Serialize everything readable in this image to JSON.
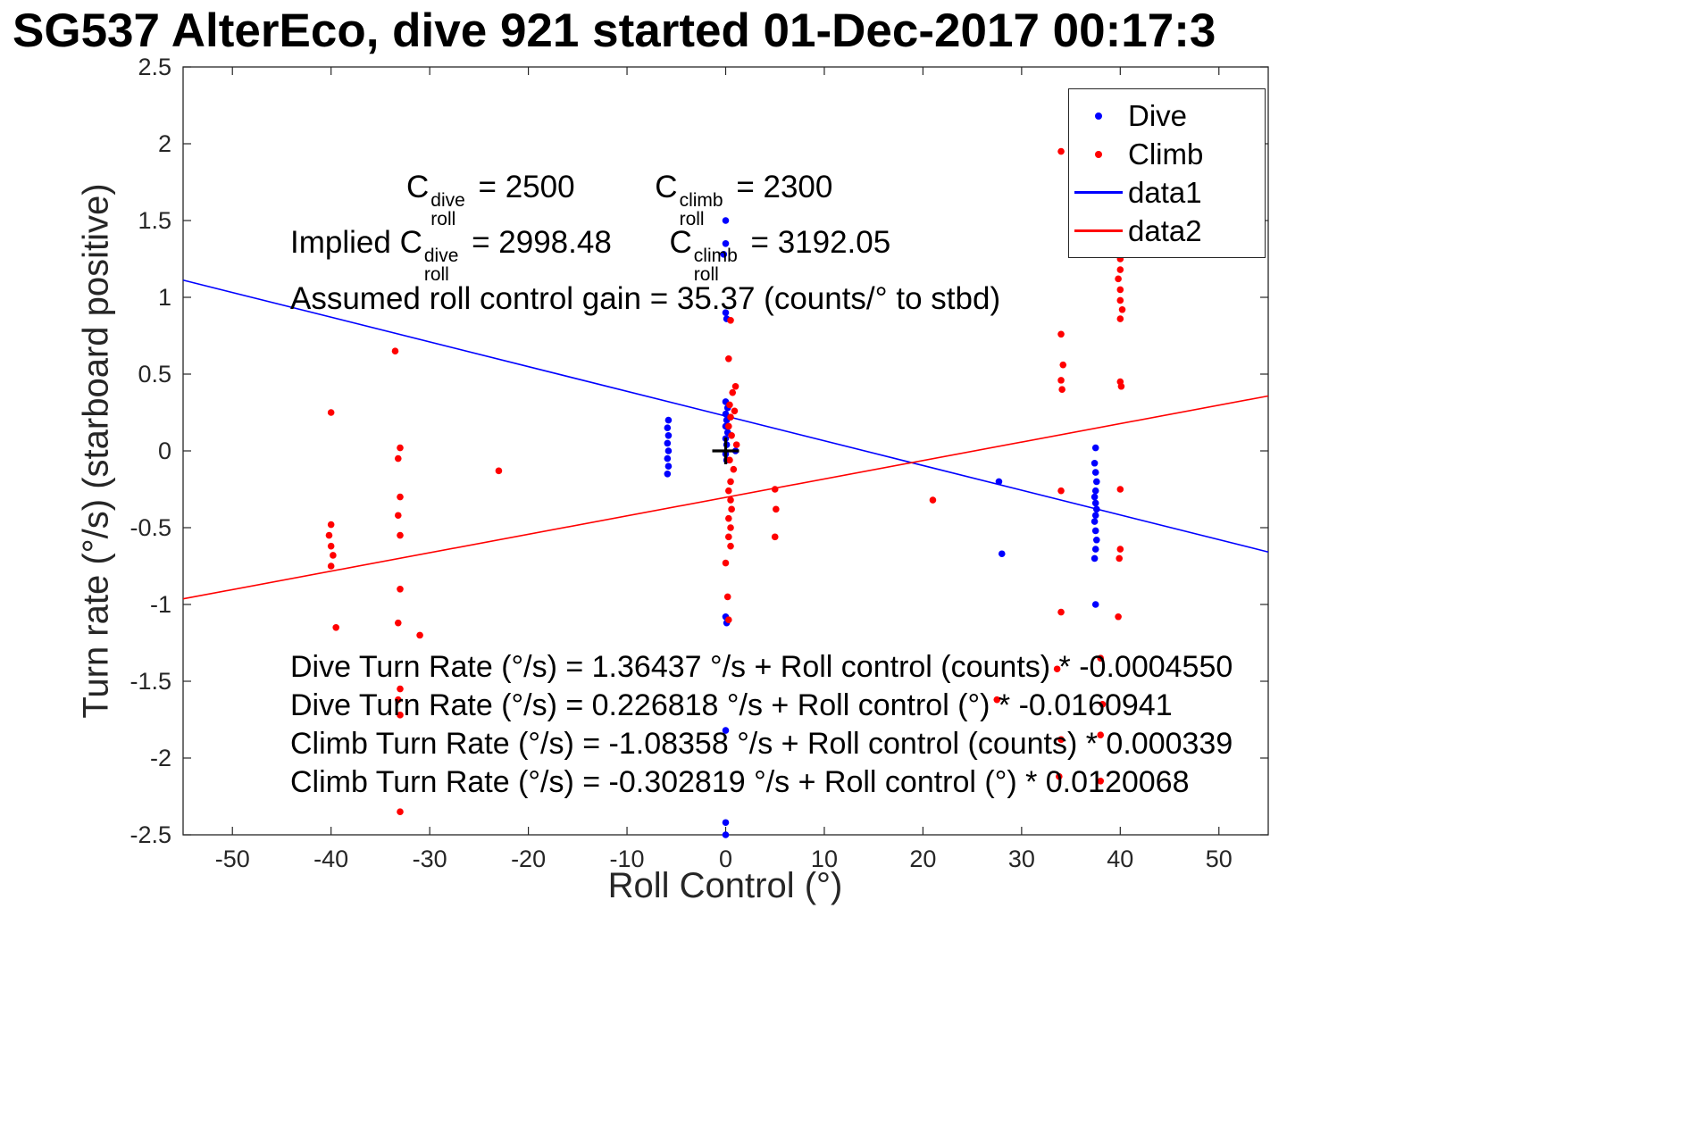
{
  "annotations": {
    "cdive": {
      "c": "C",
      "sup": "dive",
      "sub": "roll",
      "eq": " = 2500"
    },
    "cclimb": {
      "c": "C",
      "sup": "climb",
      "sub": "roll",
      "eq": " = 2300"
    },
    "implied_prefix": "Implied ",
    "implied_cdive": {
      "c": "C",
      "sup": "dive",
      "sub": "roll",
      "eq": " = 2998.48"
    },
    "implied_cclimb": {
      "c": "C",
      "sup": "climb",
      "sub": "roll",
      "eq": " = 3192.05"
    },
    "gain_line": "Assumed roll control gain = 35.37 (counts/° to stbd)",
    "equations": {
      "eq1": "Dive Turn Rate (°/s) = 1.36437 °/s + Roll control (counts) * -0.0004550",
      "eq2": "Dive Turn Rate (°/s) = 0.226818 °/s + Roll control (°) * -0.0160941",
      "eq3": "Climb Turn Rate (°/s) = -1.08358 °/s + Roll control (counts) * 0.000339",
      "eq4": "Climb Turn Rate (°/s) = -0.302819 °/s + Roll control (°) * 0.0120068"
    }
  },
  "chart_data": {
    "type": "scatter",
    "title": "SG537 AlterEco, dive 921 started 01-Dec-2017 00:17:3",
    "xlabel": "Roll Control (°)",
    "ylabel": "Turn rate (°/s) (starboard positive)",
    "xlim": [
      -55,
      55
    ],
    "ylim": [
      -2.5,
      2.5
    ],
    "xticks": [
      -50,
      -40,
      -30,
      -20,
      -10,
      0,
      10,
      20,
      30,
      40,
      50
    ],
    "xtick_labels": [
      "-50",
      "-40",
      "-30",
      "-20",
      "-10",
      "0",
      "10",
      "20",
      "30",
      "40",
      "50"
    ],
    "yticks": [
      -2.5,
      -2,
      -1.5,
      -1,
      -0.5,
      0,
      0.5,
      1,
      1.5,
      2,
      2.5
    ],
    "ytick_labels": [
      "-2.5",
      "-2",
      "-1.5",
      "-1",
      "-0.5",
      "0",
      "0.5",
      "1",
      "1.5",
      "2",
      "2.5"
    ],
    "grid": false,
    "legend_position": "top-right",
    "legend": [
      {
        "label": "Dive",
        "marker": "dot",
        "color": "#0000ff"
      },
      {
        "label": "Climb",
        "marker": "dot",
        "color": "#ff0000"
      },
      {
        "label": "data1",
        "marker": "line",
        "color": "#0000ff"
      },
      {
        "label": "data2",
        "marker": "line",
        "color": "#ff0000"
      }
    ],
    "origin_marker": {
      "x": 0,
      "y": 0,
      "symbol": "+",
      "color": "#000000"
    },
    "series": [
      {
        "name": "Dive",
        "type": "scatter",
        "color": "#0000ff",
        "points": [
          [
            0,
            1.5
          ],
          [
            0,
            1.35
          ],
          [
            -0.2,
            1.28
          ],
          [
            0,
            0.9
          ],
          [
            0.1,
            0.86
          ],
          [
            -5.8,
            0.2
          ],
          [
            -5.9,
            0.15
          ],
          [
            -5.8,
            0.1
          ],
          [
            -5.9,
            0.05
          ],
          [
            -5.8,
            0
          ],
          [
            -5.9,
            -0.05
          ],
          [
            -5.8,
            -0.1
          ],
          [
            -5.9,
            -0.15
          ],
          [
            0,
            0.32
          ],
          [
            0.2,
            0.28
          ],
          [
            0,
            0.24
          ],
          [
            0.1,
            0.2
          ],
          [
            0,
            0.16
          ],
          [
            0.2,
            0.12
          ],
          [
            0,
            0.08
          ],
          [
            0.1,
            0.04
          ],
          [
            0,
            -0.02
          ],
          [
            0.1,
            -0.06
          ],
          [
            1,
            0
          ],
          [
            0,
            -1.08
          ],
          [
            0.1,
            -1.12
          ],
          [
            0,
            -1.82
          ],
          [
            0,
            -2.42
          ],
          [
            0,
            -2.5
          ],
          [
            27.7,
            -0.2
          ],
          [
            28,
            -0.67
          ],
          [
            37.5,
            0.02
          ],
          [
            37.4,
            -0.08
          ],
          [
            37.5,
            -0.14
          ],
          [
            37.6,
            -0.2
          ],
          [
            37.5,
            -0.26
          ],
          [
            37.4,
            -0.3
          ],
          [
            37.5,
            -0.34
          ],
          [
            37.6,
            -0.38
          ],
          [
            37.5,
            -0.42
          ],
          [
            37.4,
            -0.46
          ],
          [
            37.5,
            -0.52
          ],
          [
            37.6,
            -0.58
          ],
          [
            37.5,
            -0.64
          ],
          [
            37.4,
            -0.7
          ],
          [
            37.5,
            -1.0
          ]
        ]
      },
      {
        "name": "Climb",
        "type": "scatter",
        "color": "#ff0000",
        "points": [
          [
            -40,
            0.25
          ],
          [
            -40,
            -0.48
          ],
          [
            -40.2,
            -0.55
          ],
          [
            -40,
            -0.62
          ],
          [
            -39.8,
            -0.68
          ],
          [
            -40,
            -0.75
          ],
          [
            -39.5,
            -1.15
          ],
          [
            -33.5,
            0.65
          ],
          [
            -33,
            0.02
          ],
          [
            -33.2,
            -0.05
          ],
          [
            -33,
            -0.3
          ],
          [
            -33.2,
            -0.42
          ],
          [
            -33,
            -0.55
          ],
          [
            -33,
            -0.9
          ],
          [
            -33.2,
            -1.12
          ],
          [
            -33,
            -1.55
          ],
          [
            -33.2,
            -1.62
          ],
          [
            -33,
            -1.72
          ],
          [
            -33,
            -2.35
          ],
          [
            -31,
            -1.2
          ],
          [
            -23,
            -0.13
          ],
          [
            0.5,
            0.85
          ],
          [
            0.3,
            0.6
          ],
          [
            1,
            0.42
          ],
          [
            0.7,
            0.38
          ],
          [
            0.4,
            0.3
          ],
          [
            0.9,
            0.26
          ],
          [
            0.5,
            0.22
          ],
          [
            0.3,
            0.16
          ],
          [
            0.6,
            0.1
          ],
          [
            1.1,
            0.04
          ],
          [
            0.4,
            -0.06
          ],
          [
            0.8,
            -0.12
          ],
          [
            0.5,
            -0.2
          ],
          [
            0.3,
            -0.26
          ],
          [
            0.5,
            -0.32
          ],
          [
            0.6,
            -0.38
          ],
          [
            0.3,
            -0.44
          ],
          [
            0.5,
            -0.5
          ],
          [
            0.3,
            -0.56
          ],
          [
            0.5,
            -0.62
          ],
          [
            0,
            -0.73
          ],
          [
            0.2,
            -0.95
          ],
          [
            0.3,
            -1.1
          ],
          [
            5,
            -0.25
          ],
          [
            5.1,
            -0.38
          ],
          [
            5,
            -0.56
          ],
          [
            21,
            -0.32
          ],
          [
            27.5,
            -1.62
          ],
          [
            34,
            1.95
          ],
          [
            34,
            0.76
          ],
          [
            34.2,
            0.56
          ],
          [
            34,
            0.46
          ],
          [
            34.1,
            0.4
          ],
          [
            34,
            -0.26
          ],
          [
            34,
            -1.05
          ],
          [
            33.6,
            -1.42
          ],
          [
            34,
            -1.88
          ],
          [
            33.8,
            -2.12
          ],
          [
            40,
            1.25
          ],
          [
            40,
            1.18
          ],
          [
            39.8,
            1.12
          ],
          [
            40,
            1.05
          ],
          [
            40,
            0.98
          ],
          [
            40.2,
            0.92
          ],
          [
            40,
            0.86
          ],
          [
            40,
            0.45
          ],
          [
            40.1,
            0.42
          ],
          [
            40,
            -0.25
          ],
          [
            40,
            -0.64
          ],
          [
            39.9,
            -0.7
          ],
          [
            39.8,
            -1.08
          ],
          [
            38,
            -1.35
          ],
          [
            38.2,
            -1.65
          ],
          [
            38,
            -1.85
          ],
          [
            38,
            -2.15
          ]
        ]
      },
      {
        "name": "data1",
        "type": "line",
        "color": "#0000ff",
        "intercept": 0.226818,
        "slope": -0.0160941
      },
      {
        "name": "data2",
        "type": "line",
        "color": "#ff0000",
        "intercept": -0.302819,
        "slope": 0.0120068
      }
    ]
  }
}
